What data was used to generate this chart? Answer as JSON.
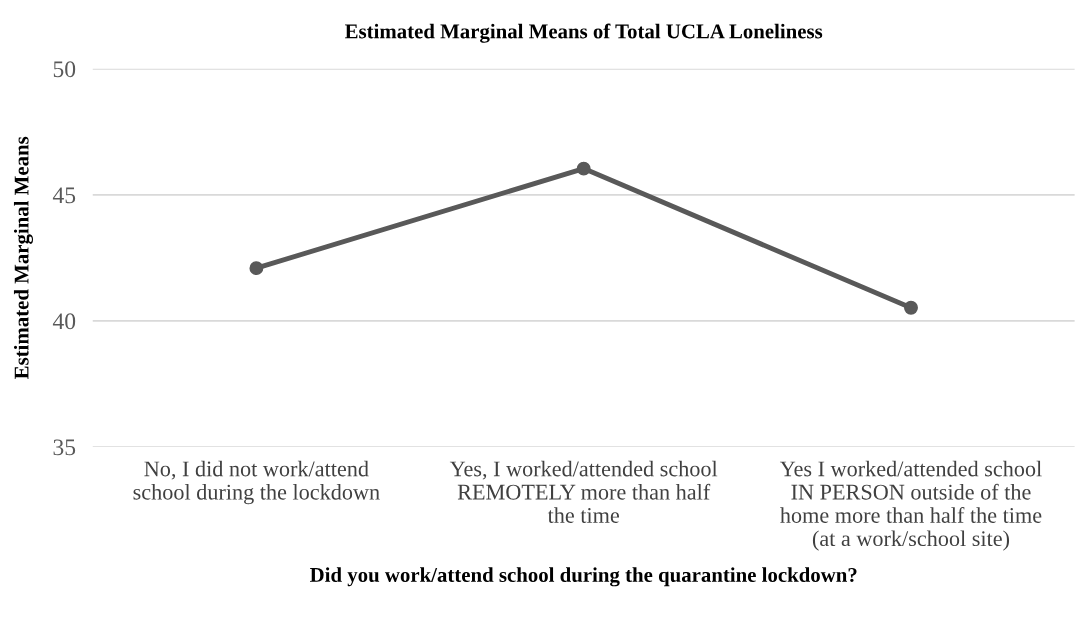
{
  "chart_data": {
    "type": "line",
    "title": "Estimated Marginal Means of Total UCLA Loneliness",
    "xlabel": "Did you work/attend school during the quarantine lockdown?",
    "ylabel": "Estimated Marginal Means",
    "categories": [
      "No, I did not work/attend\nschool during the lockdown",
      "Yes, I worked/attended school\nREMOTELY more than half\nthe time",
      "Yes I worked/attended school\nIN PERSON outside of the\nhome more than half the time\n(at a work/school site)"
    ],
    "series": [
      {
        "color": "#595959",
        "values": [
          42.09,
          46.04,
          40.52
        ]
      }
    ],
    "ylim": [
      35,
      50
    ],
    "yticks": [
      35,
      40,
      45,
      50
    ],
    "grid": "y",
    "marker": "circle",
    "line_style": "solid"
  }
}
